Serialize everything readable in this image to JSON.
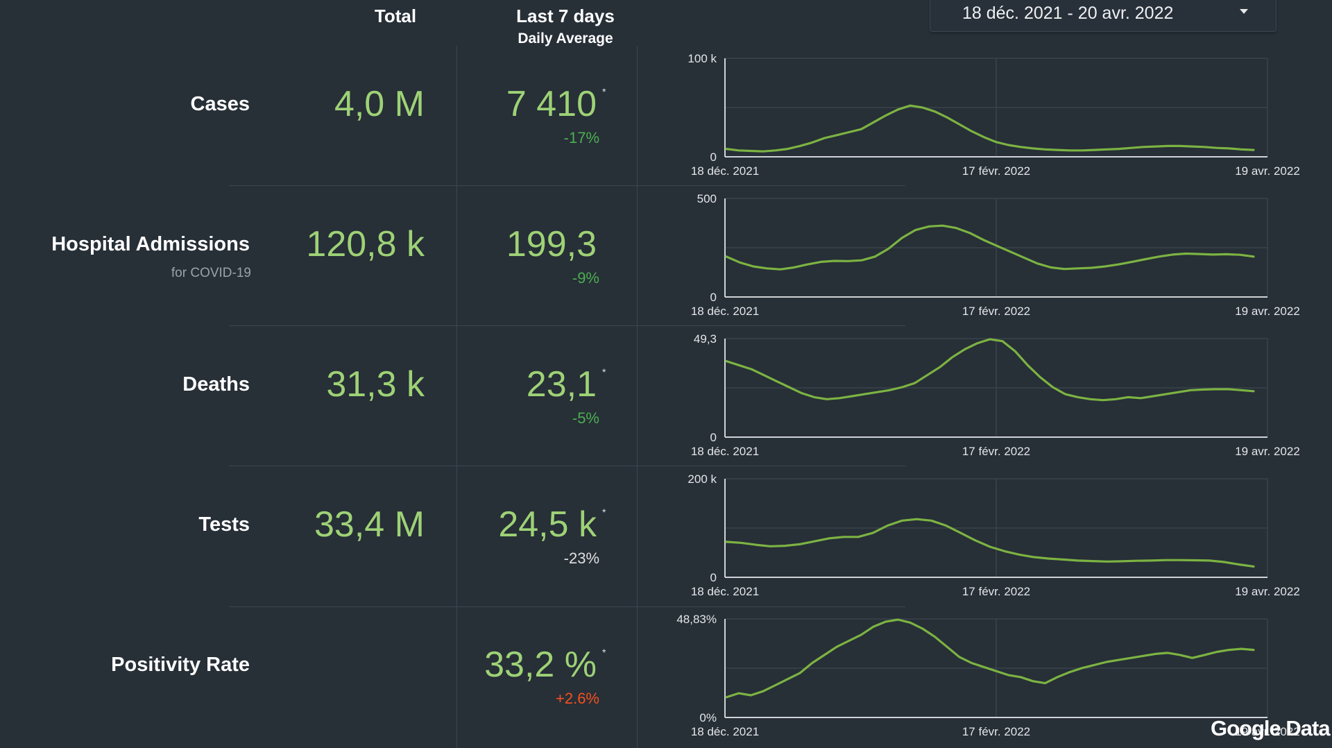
{
  "header": {
    "total_label": "Total",
    "last7_label": "Last 7 days",
    "daily_avg_label": "Daily Average"
  },
  "date_range": {
    "value": "18 déc. 2021 - 20 avr. 2022",
    "icon": "chevron-down-icon"
  },
  "colors": {
    "background": "#272f37",
    "value_green": "#9ed276",
    "line_green": "#7cb342",
    "change_green": "#4caf50",
    "change_red": "#f4511e",
    "change_gray": "#e0e0e0"
  },
  "metrics": [
    {
      "name": "Cases",
      "subtitle": "",
      "total": "4,0 M",
      "avg": "7 410",
      "star": "*",
      "change": "-17%",
      "change_color": "#4caf50"
    },
    {
      "name": "Hospital Admissions",
      "subtitle": "for COVID-19",
      "total": "120,8 k",
      "avg": "199,3",
      "star": "",
      "change": "-9%",
      "change_color": "#4caf50"
    },
    {
      "name": "Deaths",
      "subtitle": "",
      "total": "31,3 k",
      "avg": "23,1",
      "star": "*",
      "change": "-5%",
      "change_color": "#4caf50"
    },
    {
      "name": "Tests",
      "subtitle": "",
      "total": "33,4 M",
      "avg": "24,5 k",
      "star": "*",
      "change": "-23%",
      "change_color": "#e0e0e0"
    },
    {
      "name": "Positivity Rate",
      "subtitle": "",
      "total": "",
      "avg": "33,2 %",
      "star": "*",
      "change": "+2.6%",
      "change_color": "#f4511e"
    }
  ],
  "chart_data": [
    {
      "type": "line",
      "x_tick_labels": [
        "18 déc. 2021",
        "17 févr. 2022",
        "19 avr. 2022"
      ],
      "ylim": [
        0,
        100000
      ],
      "y_tick_labels": [
        "0",
        "100 k"
      ],
      "grid": true,
      "series": [
        {
          "values": [
            8000,
            6500,
            6000,
            5500,
            6500,
            8000,
            11000,
            14500,
            19000,
            22000,
            25000,
            28000,
            35000,
            42000,
            48000,
            52000,
            50000,
            46000,
            40000,
            33000,
            26000,
            20000,
            15000,
            12000,
            10000,
            8500,
            7500,
            7000,
            6500,
            6500,
            7000,
            7500,
            8000,
            9000,
            10000,
            10500,
            11000,
            11000,
            10500,
            10000,
            9000,
            8500,
            7500,
            7000
          ]
        }
      ]
    },
    {
      "type": "line",
      "x_tick_labels": [
        "18 déc. 2021",
        "17 févr. 2022",
        "19 avr. 2022"
      ],
      "ylim": [
        0,
        500
      ],
      "y_tick_labels": [
        "0",
        "500"
      ],
      "grid": true,
      "series": [
        {
          "values": [
            205,
            175,
            155,
            145,
            140,
            150,
            165,
            178,
            183,
            182,
            186,
            205,
            245,
            300,
            340,
            358,
            362,
            350,
            325,
            290,
            260,
            230,
            200,
            170,
            150,
            142,
            145,
            148,
            155,
            165,
            178,
            192,
            205,
            215,
            220,
            218,
            215,
            217,
            214,
            205
          ]
        }
      ]
    },
    {
      "type": "line",
      "x_tick_labels": [
        "18 déc. 2021",
        "17 févr. 2022",
        "19 avr. 2022"
      ],
      "ylim": [
        0,
        49.3
      ],
      "y_tick_labels": [
        "0",
        "49,3"
      ],
      "grid": true,
      "series": [
        {
          "values": [
            38,
            36,
            34,
            31,
            28,
            25,
            22,
            20,
            19,
            19.5,
            20.5,
            21.5,
            22.5,
            23.5,
            25,
            27,
            31,
            35,
            40,
            44,
            47,
            49,
            48,
            43,
            36,
            30,
            25,
            21.5,
            20,
            19,
            18.5,
            19,
            20,
            19.5,
            20.5,
            21.5,
            22.5,
            23.5,
            23.8,
            24,
            24,
            23.5,
            23
          ]
        }
      ]
    },
    {
      "type": "line",
      "x_tick_labels": [
        "18 déc. 2021",
        "17 févr. 2022",
        "19 avr. 2022"
      ],
      "ylim": [
        0,
        200000
      ],
      "y_tick_labels": [
        "0",
        "200 k"
      ],
      "grid": true,
      "series": [
        {
          "values": [
            72000,
            70000,
            66000,
            63000,
            64000,
            67000,
            73000,
            79000,
            82000,
            82000,
            90000,
            105000,
            115000,
            118000,
            115000,
            105000,
            90000,
            75000,
            62000,
            53000,
            46000,
            41000,
            38000,
            36000,
            34000,
            33000,
            32000,
            32500,
            33500,
            34000,
            35000,
            35000,
            34500,
            34000,
            31000,
            26000,
            22000
          ]
        }
      ]
    },
    {
      "type": "line",
      "x_tick_labels": [
        "18 déc. 2021",
        "17 févr. 2022",
        "19 avr. 2022"
      ],
      "ylim": [
        0,
        48.83
      ],
      "y_tick_labels": [
        "0%",
        "48,83%"
      ],
      "grid": true,
      "series": [
        {
          "values": [
            10,
            12,
            11,
            13,
            16,
            19,
            22,
            27,
            31,
            35,
            38,
            41,
            45,
            47.5,
            48.5,
            47,
            44,
            40,
            35,
            30,
            27,
            25,
            23,
            21,
            20,
            18,
            17,
            20,
            22.5,
            24.5,
            26,
            27.5,
            28.5,
            29.5,
            30.5,
            31.5,
            32,
            31,
            29.5,
            31,
            32.5,
            33.5,
            34,
            33.5
          ]
        }
      ]
    }
  ],
  "footer": {
    "brand": "Google Data S"
  }
}
